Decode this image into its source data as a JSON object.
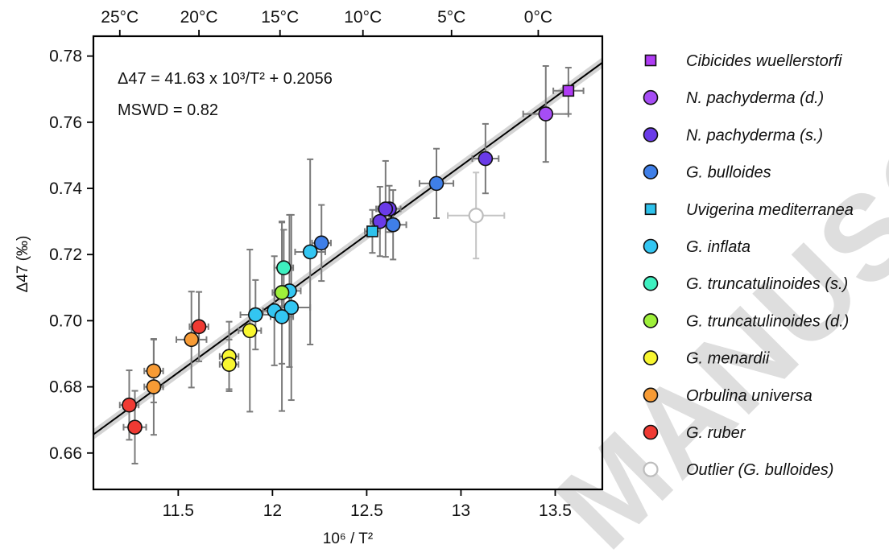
{
  "chart_data": {
    "type": "scatter",
    "xlabel": "10⁶ / T²",
    "ylabel": "Δ47 (‰)",
    "xlim": [
      11.05,
      13.75
    ],
    "ylim": [
      0.649,
      0.786
    ],
    "x_ticks": [
      11.5,
      12,
      12.5,
      13,
      13.5
    ],
    "x_tick_labels": [
      "11.5",
      "12",
      "12.5",
      "13",
      "13.5"
    ],
    "y_ticks": [
      0.66,
      0.68,
      0.7,
      0.72,
      0.74,
      0.76,
      0.78
    ],
    "y_tick_labels": [
      "0.66",
      "0.68",
      "0.70",
      "0.72",
      "0.74",
      "0.76",
      "0.78"
    ],
    "top_axis": {
      "tick_labels": [
        "25°C",
        "20°C",
        "15°C",
        "10°C",
        "5°C",
        "0°C"
      ],
      "positions": [
        11.19,
        11.61,
        12.04,
        12.48,
        12.95,
        13.41
      ]
    },
    "annotation_equation": "Δ47 = 41.63 x 10³/T² + 0.2056",
    "annotation_mswd": "MSWD = 0.82",
    "regression": {
      "slope": 0.04163,
      "intercept": 0.2056
    },
    "legend_position": "outside-right",
    "grid": false,
    "series": [
      {
        "name": "Cibicides wuellerstorfi",
        "marker": "square",
        "color": "#b03cf5",
        "points": [
          {
            "x": 13.57,
            "y": 0.7695,
            "xerr": 0.08,
            "yerr": 0.007
          }
        ]
      },
      {
        "name": "N. pachyderma (d.)",
        "marker": "circle",
        "color": "#a64df5",
        "points": [
          {
            "x": 13.45,
            "y": 0.7625,
            "xerr": 0.12,
            "yerr": 0.0145
          }
        ]
      },
      {
        "name": "N. pachyderma (s.)",
        "marker": "circle",
        "color": "#6a3be8",
        "points": [
          {
            "x": 13.13,
            "y": 0.749,
            "xerr": 0.07,
            "yerr": 0.0105
          },
          {
            "x": 12.62,
            "y": 0.7338,
            "xerr": 0.06,
            "yerr": 0.007
          },
          {
            "x": 12.6,
            "y": 0.7338,
            "xerr": 0.05,
            "yerr": 0.0145
          },
          {
            "x": 12.57,
            "y": 0.73,
            "xerr": 0.05,
            "yerr": 0.0105
          }
        ]
      },
      {
        "name": "G. bulloides",
        "marker": "circle",
        "color": "#3f7fe8",
        "points": [
          {
            "x": 12.87,
            "y": 0.7415,
            "xerr": 0.09,
            "yerr": 0.0105
          },
          {
            "x": 12.64,
            "y": 0.729,
            "xerr": 0.07,
            "yerr": 0.0105
          },
          {
            "x": 12.26,
            "y": 0.7235,
            "xerr": 0.05,
            "yerr": 0.0115
          }
        ]
      },
      {
        "name": "Uvigerina mediterranea",
        "marker": "square",
        "color": "#2ec2ec",
        "points": [
          {
            "x": 12.53,
            "y": 0.727,
            "xerr": 0.04,
            "yerr": 0.0065
          }
        ]
      },
      {
        "name": "G. inflata",
        "marker": "circle",
        "color": "#33c6f2",
        "points": [
          {
            "x": 12.2,
            "y": 0.7208,
            "xerr": 0.08,
            "yerr": 0.028
          },
          {
            "x": 12.09,
            "y": 0.709,
            "xerr": 0.06,
            "yerr": 0.023
          },
          {
            "x": 12.1,
            "y": 0.704,
            "xerr": 0.1,
            "yerr": 0.028
          },
          {
            "x": 12.01,
            "y": 0.703,
            "xerr": 0.06,
            "yerr": 0.0165
          },
          {
            "x": 12.05,
            "y": 0.7012,
            "xerr": 0.06,
            "yerr": 0.0285
          },
          {
            "x": 11.91,
            "y": 0.7018,
            "xerr": 0.08,
            "yerr": 0.0105
          }
        ]
      },
      {
        "name": "G. truncatulinoides (s.)",
        "marker": "circle",
        "color": "#3ef0c0",
        "points": [
          {
            "x": 12.06,
            "y": 0.716,
            "xerr": 0.05,
            "yerr": 0.0115
          }
        ]
      },
      {
        "name": "G. truncatulinoides (d.)",
        "marker": "circle",
        "color": "#9ef03a",
        "points": [
          {
            "x": 12.05,
            "y": 0.7085,
            "xerr": 0.05,
            "yerr": 0.0215
          }
        ]
      },
      {
        "name": "G. menardii",
        "marker": "circle",
        "color": "#f8f630",
        "points": [
          {
            "x": 11.88,
            "y": 0.697,
            "xerr": 0.06,
            "yerr": 0.0245
          },
          {
            "x": 11.77,
            "y": 0.6892,
            "xerr": 0.05,
            "yerr": 0.0105
          },
          {
            "x": 11.77,
            "y": 0.6868,
            "xerr": 0.05,
            "yerr": 0.0075
          }
        ]
      },
      {
        "name": "Orbulina universa",
        "marker": "circle",
        "color": "#f79b35",
        "points": [
          {
            "x": 11.57,
            "y": 0.6943,
            "xerr": 0.08,
            "yerr": 0.0145
          },
          {
            "x": 11.37,
            "y": 0.6848,
            "xerr": 0.05,
            "yerr": 0.0095
          },
          {
            "x": 11.37,
            "y": 0.68,
            "xerr": 0.05,
            "yerr": 0.0145
          }
        ]
      },
      {
        "name": "G. ruber",
        "marker": "circle",
        "color": "#ef3a33",
        "points": [
          {
            "x": 11.61,
            "y": 0.6982,
            "xerr": 0.05,
            "yerr": 0.0105
          },
          {
            "x": 11.24,
            "y": 0.6745,
            "xerr": 0.05,
            "yerr": 0.0105
          },
          {
            "x": 11.27,
            "y": 0.6678,
            "xerr": 0.06,
            "yerr": 0.011
          }
        ]
      },
      {
        "name": "Outlier (G. bulloides)",
        "marker": "open-circle",
        "color": "#bdbdbd",
        "points": [
          {
            "x": 13.08,
            "y": 0.7318,
            "xerr": 0.15,
            "yerr": 0.013
          }
        ]
      }
    ]
  },
  "watermark": "MANUSCRIPT"
}
